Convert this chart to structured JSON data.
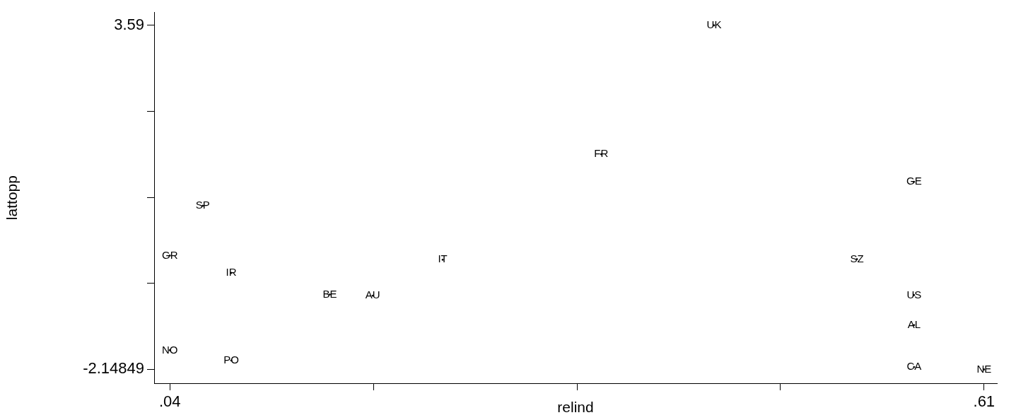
{
  "chart_data": {
    "type": "scatter",
    "xlabel": "relind",
    "ylabel": "lattopp",
    "xlim": [
      0.029,
      0.619
    ],
    "ylim": [
      -2.38,
      3.81
    ],
    "xticks": [
      {
        "value": 0.04,
        "label": ".04"
      },
      {
        "value": 0.1825,
        "label": null
      },
      {
        "value": 0.325,
        "label": null
      },
      {
        "value": 0.4675,
        "label": null
      },
      {
        "value": 0.61,
        "label": ".61"
      }
    ],
    "yticks": [
      -2.14849,
      {
        "value": -0.713,
        "label": null
      },
      {
        "value": 0.721,
        "label": null
      },
      {
        "value": 2.155,
        "label": null
      },
      3.59
    ],
    "grid": false,
    "legend": false,
    "series": [
      {
        "color": "#000000",
        "x": [
          0.421,
          0.342,
          0.561,
          0.063,
          0.04,
          0.231,
          0.521,
          0.083,
          0.152,
          0.182,
          0.561,
          0.561,
          0.04,
          0.083,
          0.561,
          0.61
        ],
        "values": [
          3.59,
          1.44,
          0.98,
          0.58,
          -0.25,
          -0.32,
          -0.31,
          -0.54,
          -0.9,
          -0.92,
          -0.91,
          -1.41,
          -1.83,
          -2.0,
          -2.11,
          -2.15
        ],
        "value_labels": [
          "UK",
          "FR",
          "GE",
          "SP",
          "GR",
          "IT",
          "SZ",
          "IR",
          "BE",
          "AU",
          "US",
          "AL",
          "NO",
          "PO",
          "CA",
          "NE"
        ]
      }
    ]
  }
}
